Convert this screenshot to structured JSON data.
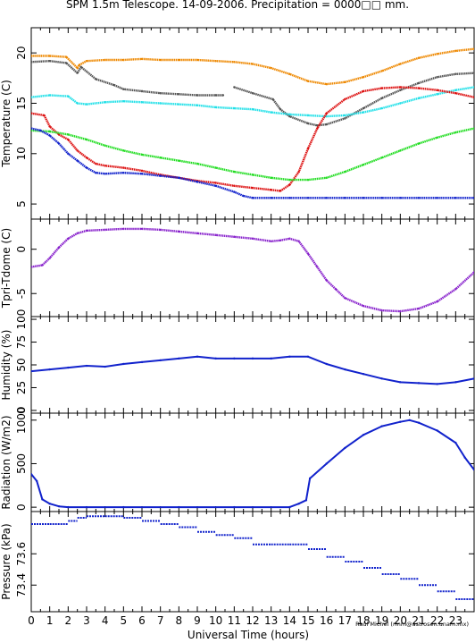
{
  "title": "SPM 1.5m Telescope. 14-09-2006. Precipitation = 0000□□ mm.",
  "credit": "Raul Michel (rmm@astrosen.unam.mx)",
  "colors": {
    "orange": "#ee8800",
    "gray": "#555555",
    "cyan": "#22e0e8",
    "red": "#dd1111",
    "green": "#22dd22",
    "blue": "#1122cc",
    "purple": "#8822cc"
  },
  "chart_data": [
    {
      "type": "scatter",
      "ylabel": "Temperature (C)",
      "xlim": [
        0,
        24
      ],
      "ylim": [
        3.5,
        22.5
      ],
      "yticks": [
        5,
        10,
        15,
        20
      ],
      "series": [
        {
          "color": "orange",
          "x": [
            0,
            1,
            1.9,
            2.5,
            2.6,
            3,
            4,
            5,
            6,
            7,
            8,
            9,
            10,
            11,
            12,
            13,
            14,
            15,
            16,
            17,
            18,
            19,
            20,
            21,
            22,
            23,
            24
          ],
          "y": [
            19.7,
            19.7,
            19.6,
            18.5,
            18.8,
            19.2,
            19.3,
            19.3,
            19.4,
            19.3,
            19.3,
            19.3,
            19.2,
            19.1,
            18.9,
            18.5,
            17.9,
            17.2,
            16.9,
            17.1,
            17.6,
            18.2,
            18.9,
            19.5,
            19.9,
            20.2,
            20.4
          ]
        },
        {
          "color": "gray",
          "x": [
            0,
            1,
            1.9,
            2.5,
            2.7,
            3.5,
            4.5,
            5,
            6,
            7,
            8,
            9,
            10,
            10.4
          ],
          "y": [
            19.1,
            19.2,
            19.0,
            18.0,
            18.6,
            17.4,
            16.8,
            16.4,
            16.2,
            16.0,
            15.9,
            15.8,
            15.8,
            15.8
          ]
        },
        {
          "color": "gray",
          "x": [
            11,
            12,
            13.1,
            13.5,
            14,
            15,
            15.5,
            16,
            17,
            18,
            19,
            20,
            21,
            22,
            23,
            24
          ],
          "y": [
            16.6,
            16.0,
            15.4,
            14.4,
            13.7,
            13.0,
            12.8,
            12.9,
            13.5,
            14.5,
            15.5,
            16.3,
            17.0,
            17.6,
            17.9,
            18.0
          ]
        },
        {
          "color": "cyan",
          "x": [
            0,
            1,
            2,
            2.5,
            3,
            4,
            5,
            6,
            7,
            8,
            9,
            10,
            11,
            12,
            13,
            14,
            15,
            16,
            17,
            18,
            19,
            20,
            21,
            22,
            23,
            24
          ],
          "y": [
            15.6,
            15.8,
            15.7,
            15.0,
            14.9,
            15.1,
            15.2,
            15.1,
            15.0,
            14.9,
            14.8,
            14.6,
            14.5,
            14.4,
            14.1,
            13.9,
            13.8,
            13.7,
            13.8,
            14.1,
            14.5,
            15.0,
            15.5,
            15.9,
            16.3,
            16.6
          ]
        },
        {
          "color": "red",
          "x": [
            0,
            0.7,
            1,
            1.5,
            2,
            2.5,
            3,
            3.5,
            4,
            5,
            6,
            7,
            8,
            9,
            10,
            11,
            12,
            13,
            13.5,
            14,
            14.5,
            15,
            15.5,
            16,
            17,
            18,
            19,
            20,
            21,
            22,
            23,
            24
          ],
          "y": [
            14.0,
            13.8,
            12.7,
            11.9,
            11.4,
            10.3,
            9.6,
            9.0,
            8.8,
            8.6,
            8.3,
            7.9,
            7.6,
            7.3,
            7.1,
            6.8,
            6.6,
            6.4,
            6.3,
            6.9,
            8.2,
            10.5,
            12.5,
            14.0,
            15.4,
            16.2,
            16.5,
            16.6,
            16.5,
            16.3,
            16.0,
            15.6
          ]
        },
        {
          "color": "green",
          "x": [
            0,
            1,
            2,
            3,
            4,
            5,
            6,
            7,
            8,
            9,
            10,
            11,
            12,
            13,
            14,
            15,
            16,
            17,
            18,
            19,
            20,
            21,
            22,
            23,
            24
          ],
          "y": [
            12.3,
            12.2,
            11.9,
            11.4,
            10.8,
            10.3,
            9.9,
            9.6,
            9.3,
            9.0,
            8.6,
            8.2,
            7.9,
            7.6,
            7.4,
            7.4,
            7.6,
            8.2,
            8.9,
            9.6,
            10.3,
            11.0,
            11.6,
            12.1,
            12.5
          ]
        },
        {
          "color": "blue",
          "x": [
            0,
            0.5,
            1,
            1.5,
            2,
            2.5,
            3,
            3.5,
            4,
            5,
            6,
            7,
            8,
            9,
            10,
            11,
            11.5,
            12,
            13,
            14,
            15,
            16,
            17,
            18,
            19,
            20,
            21,
            22,
            23,
            24
          ],
          "y": [
            12.5,
            12.3,
            11.8,
            11.0,
            10.0,
            9.3,
            8.6,
            8.1,
            8.0,
            8.1,
            8.0,
            7.8,
            7.6,
            7.2,
            6.8,
            6.2,
            5.8,
            5.6,
            5.6,
            5.6,
            5.6,
            5.6,
            5.6,
            5.6,
            5.6,
            5.6,
            5.6,
            5.6,
            5.6,
            5.6
          ]
        }
      ]
    },
    {
      "type": "scatter",
      "ylabel": "Tpri-Tdome (C)",
      "xlim": [
        0,
        24
      ],
      "ylim": [
        -7.6,
        3.4
      ],
      "yticks": [
        -5,
        0
      ],
      "series": [
        {
          "color": "purple",
          "x": [
            0,
            0.6,
            1,
            1.5,
            2,
            2.5,
            3,
            4,
            5,
            6,
            7,
            8,
            9,
            10,
            11,
            12,
            13,
            13.5,
            14,
            14.5,
            15,
            15.5,
            16,
            16.5,
            17,
            18,
            19,
            20,
            21,
            22,
            23,
            24
          ],
          "y": [
            -2.0,
            -1.8,
            -1.0,
            0.2,
            1.2,
            1.8,
            2.1,
            2.2,
            2.3,
            2.3,
            2.2,
            2.0,
            1.8,
            1.6,
            1.4,
            1.2,
            0.9,
            1.0,
            1.2,
            0.9,
            -0.5,
            -2.0,
            -3.5,
            -4.5,
            -5.5,
            -6.4,
            -6.9,
            -7.0,
            -6.7,
            -5.9,
            -4.5,
            -2.6
          ]
        }
      ]
    },
    {
      "type": "line",
      "ylabel": "Humidity (%)",
      "xlim": [
        0,
        24
      ],
      "ylim": [
        -3,
        103
      ],
      "yticks": [
        0,
        25,
        50,
        75,
        100
      ],
      "series": [
        {
          "color": "blue",
          "x": [
            0,
            1,
            2,
            3,
            4,
            5,
            6,
            7,
            8,
            9,
            10,
            11,
            12,
            13,
            14,
            15,
            16,
            17,
            18,
            19,
            20,
            21,
            22,
            23,
            24
          ],
          "y": [
            43,
            45,
            47,
            49,
            48,
            51,
            53,
            55,
            57,
            59,
            57,
            57,
            57,
            57,
            59,
            59,
            51,
            45,
            40,
            35,
            31,
            30,
            29,
            31,
            35
          ]
        }
      ]
    },
    {
      "type": "line",
      "ylabel": "Radiation (W/m2)",
      "xlim": [
        0,
        24
      ],
      "ylim": [
        -50,
        1080
      ],
      "yticks": [
        0,
        500,
        1000
      ],
      "series": [
        {
          "color": "blue",
          "x": [
            0,
            0.3,
            0.6,
            1,
            1.5,
            2,
            3,
            5,
            8,
            11,
            14,
            14.5,
            14.9,
            15.1,
            16,
            17,
            18,
            19,
            20,
            20.5,
            21,
            22,
            23,
            23.5,
            24
          ],
          "y": [
            380,
            300,
            90,
            40,
            10,
            0,
            0,
            0,
            0,
            0,
            0,
            40,
            80,
            330,
            500,
            680,
            830,
            930,
            980,
            1000,
            970,
            880,
            740,
            570,
            430
          ]
        }
      ]
    },
    {
      "type": "scatter",
      "ylabel": "Pressure (kPa)",
      "xlim": [
        0,
        24
      ],
      "ylim": [
        73.23,
        73.87
      ],
      "yticks": [
        73.4,
        73.6
      ],
      "series": [
        {
          "color": "blue",
          "x": [
            0,
            1,
            2,
            2.5,
            3,
            4,
            5,
            6,
            7,
            8,
            9,
            10,
            11,
            12,
            13,
            14,
            15,
            16,
            17,
            18,
            19,
            20,
            21,
            22,
            23,
            24
          ],
          "y": [
            73.79,
            73.79,
            73.81,
            73.83,
            73.84,
            73.84,
            73.83,
            73.81,
            73.79,
            73.77,
            73.74,
            73.72,
            73.7,
            73.66,
            73.66,
            73.66,
            73.63,
            73.58,
            73.55,
            73.51,
            73.47,
            73.44,
            73.4,
            73.36,
            73.31,
            73.28
          ]
        }
      ]
    }
  ],
  "xaxis": {
    "label": "Universal Time (hours)",
    "ticks": [
      "0",
      "1",
      "2",
      "3",
      "4",
      "5",
      "6",
      "7",
      "8",
      "9",
      "10",
      "11",
      "12",
      "13",
      "14",
      "15",
      "16",
      "17",
      "18",
      "19",
      "20",
      "21",
      "22",
      "23"
    ]
  }
}
